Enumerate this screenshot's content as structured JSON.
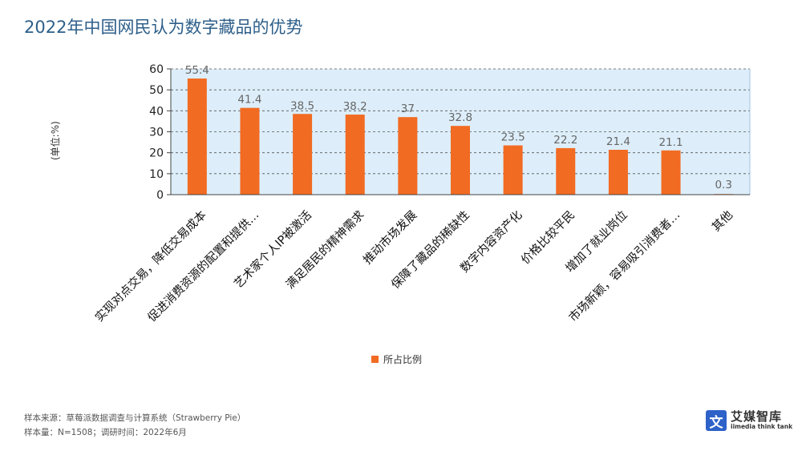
{
  "header": {
    "title": "2022年中国网民认为数字藏品的优势"
  },
  "chart_data": {
    "type": "bar",
    "categories": [
      "实现对点交易，降低交易成本",
      "促进消费资源的配置和提供…",
      "艺术家个人IP被激活",
      "满足居民的精神需求",
      "推动市场发展",
      "保障了藏品的稀缺性",
      "数字内容资产化",
      "价格比较平民",
      "增加了就业岗位",
      "市场新颖，容易吸引消费者…",
      "其他"
    ],
    "series": [
      {
        "name": "所占比例",
        "values": [
          55.4,
          41.4,
          38.5,
          38.2,
          37,
          32.8,
          23.5,
          22.2,
          21.4,
          21.1,
          0.3
        ],
        "color": "#f26b22"
      }
    ],
    "ylabel": "(单位:%)",
    "ylim": [
      0,
      60
    ],
    "yticks": [
      0,
      10,
      20,
      30,
      40,
      50,
      60
    ],
    "grid": true,
    "legend": "bottom",
    "plot_bg": "#ddeefa"
  },
  "footer": {
    "source_line1": "样本来源：草莓派数据调查与计算系统（Strawberry Pie）",
    "source_line2": "样本量：N=1508；调研时间：2022年6月",
    "logo_mark": "文",
    "logo_cn": "艾媒智库",
    "logo_en": "iimedia think tank"
  }
}
